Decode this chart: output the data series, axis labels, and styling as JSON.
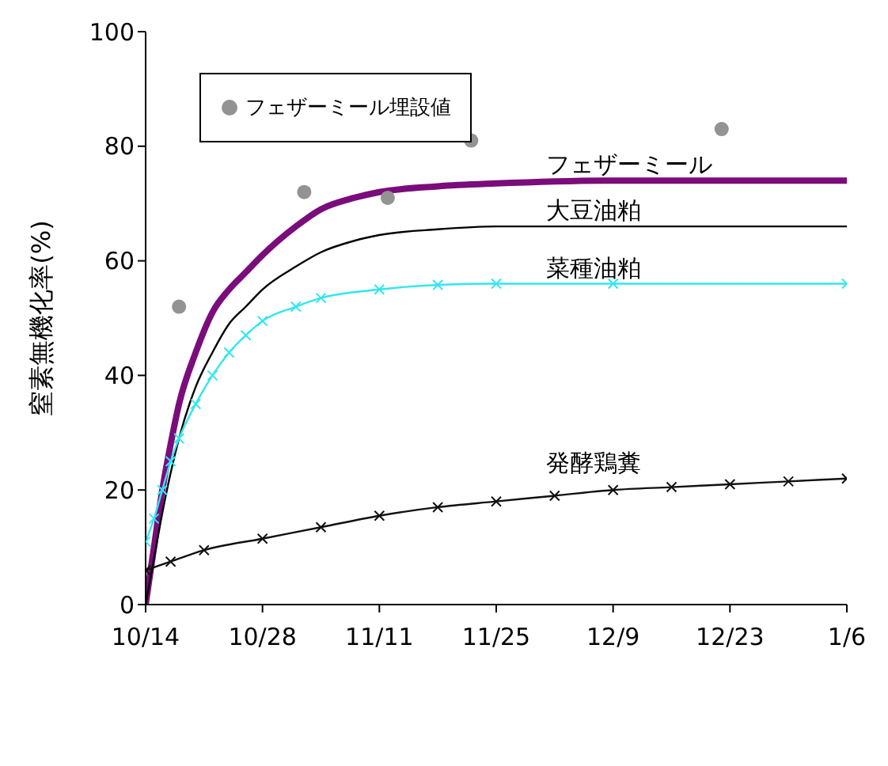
{
  "chart_data": {
    "type": "line",
    "ylabel": "窒素無機化率(%)",
    "categories": [
      "10/14",
      null,
      null,
      null,
      null,
      null,
      null,
      null,
      null,
      null,
      null,
      null,
      null,
      null,
      "10/28",
      null,
      null,
      null,
      null,
      null,
      null,
      null,
      null,
      null,
      null,
      null,
      null,
      null,
      "11/11",
      null,
      null,
      null,
      null,
      null,
      null,
      null,
      null,
      null,
      null,
      null,
      null,
      null,
      "11/25",
      null,
      null,
      null,
      null,
      null,
      null,
      null,
      null,
      null,
      null,
      null,
      null,
      null,
      "12/9",
      null,
      null,
      null,
      null,
      null,
      null,
      null,
      null,
      null,
      null,
      null,
      null,
      null,
      "12/23",
      null,
      null,
      null,
      null,
      null,
      null,
      null,
      null,
      null,
      null,
      null,
      null,
      null,
      "1/6"
    ],
    "ylim": [
      0,
      100
    ],
    "yticks": [
      0,
      20,
      40,
      60,
      80,
      100
    ],
    "grid": false,
    "legend": "top left",
    "series": [
      {
        "name": "フェザーミール埋設値",
        "type": "scatter",
        "color": "#939393",
        "marker": "circle",
        "values": [
          null,
          null,
          null,
          null,
          52,
          null,
          null,
          null,
          null,
          null,
          null,
          null,
          null,
          null,
          null,
          null,
          null,
          null,
          null,
          72,
          null,
          null,
          null,
          null,
          null,
          null,
          null,
          null,
          null,
          71,
          null,
          null,
          null,
          null,
          null,
          null,
          null,
          null,
          null,
          81,
          null,
          null,
          null,
          null,
          null,
          null,
          null,
          null,
          null,
          null,
          null,
          null,
          null,
          null,
          null,
          null,
          null,
          null,
          null,
          null,
          null,
          null,
          null,
          null,
          null,
          null,
          null,
          null,
          null,
          83,
          null,
          null,
          null,
          null,
          null,
          null,
          null,
          null,
          null,
          null,
          null,
          null,
          null,
          null,
          null
        ]
      },
      {
        "name": "フェザーミール",
        "color": "#7b0c7b",
        "marker": "none",
        "values": [
          0,
          10,
          20,
          28,
          35,
          null,
          44,
          null,
          51,
          null,
          55,
          null,
          58,
          null,
          61,
          null,
          null,
          null,
          66,
          null,
          null,
          69,
          null,
          null,
          null,
          71,
          null,
          null,
          72,
          null,
          null,
          null,
          null,
          null,
          null,
          73,
          null,
          null,
          null,
          null,
          null,
          null,
          73.5,
          null,
          null,
          null,
          null,
          null,
          null,
          null,
          null,
          null,
          null,
          null,
          null,
          null,
          74,
          null,
          null,
          null,
          null,
          null,
          null,
          null,
          null,
          null,
          null,
          null,
          null,
          null,
          74,
          null,
          null,
          null,
          null,
          null,
          null,
          null,
          null,
          null,
          null,
          null,
          null,
          null,
          74
        ]
      },
      {
        "name": "大豆油粕",
        "color": "#000000",
        "marker": "none",
        "values": [
          0,
          8,
          16,
          23,
          29,
          null,
          38,
          null,
          44,
          null,
          49,
          null,
          52,
          null,
          55,
          null,
          null,
          null,
          59,
          null,
          null,
          61.5,
          null,
          null,
          null,
          63.5,
          null,
          null,
          64.5,
          null,
          null,
          null,
          null,
          null,
          null,
          65.5,
          null,
          null,
          null,
          null,
          null,
          null,
          66,
          null,
          null,
          null,
          null,
          null,
          null,
          null,
          null,
          null,
          null,
          null,
          null,
          null,
          66,
          null,
          null,
          null,
          null,
          null,
          null,
          null,
          null,
          null,
          null,
          null,
          null,
          null,
          null,
          null,
          null,
          null,
          null,
          null,
          null,
          null,
          null,
          null,
          null,
          null,
          null,
          null,
          66
        ]
      },
      {
        "name": "菜種油粕",
        "color": "#33e6f0",
        "marker": "cross",
        "values": [
          11,
          15,
          20,
          25,
          29,
          null,
          35,
          null,
          40,
          null,
          44,
          null,
          47,
          null,
          49.5,
          null,
          null,
          null,
          52,
          null,
          null,
          53.5,
          null,
          null,
          null,
          null,
          null,
          null,
          55,
          null,
          null,
          null,
          null,
          null,
          null,
          55.8,
          null,
          null,
          null,
          null,
          null,
          null,
          56,
          null,
          null,
          null,
          null,
          null,
          null,
          null,
          null,
          null,
          null,
          null,
          null,
          null,
          56,
          null,
          null,
          null,
          null,
          null,
          null,
          null,
          null,
          null,
          null,
          null,
          null,
          null,
          null,
          null,
          null,
          null,
          null,
          null,
          null,
          null,
          null,
          null,
          null,
          null,
          null,
          null,
          56
        ]
      },
      {
        "name": "発酵鶏糞",
        "color": "#111111",
        "marker": "cross",
        "values": [
          6,
          null,
          null,
          7.5,
          null,
          null,
          null,
          9.5,
          null,
          null,
          null,
          null,
          null,
          null,
          11.5,
          null,
          null,
          null,
          null,
          null,
          null,
          13.5,
          null,
          null,
          null,
          null,
          null,
          null,
          15.5,
          null,
          null,
          null,
          null,
          null,
          null,
          17,
          null,
          null,
          null,
          null,
          null,
          null,
          18,
          null,
          null,
          null,
          null,
          null,
          null,
          19,
          null,
          null,
          null,
          null,
          null,
          null,
          20,
          null,
          null,
          null,
          null,
          null,
          null,
          20.5,
          null,
          null,
          null,
          null,
          null,
          null,
          21,
          null,
          null,
          null,
          null,
          null,
          null,
          21.5,
          null,
          null,
          null,
          null,
          null,
          null,
          22
        ]
      }
    ]
  }
}
